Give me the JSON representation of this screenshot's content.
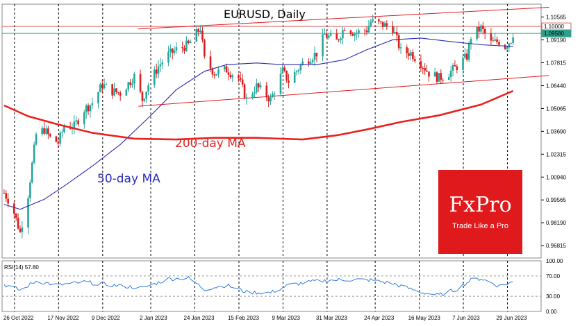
{
  "chart_data": {
    "type": "candlestick",
    "title": "EURUSD, Daily",
    "symbol": "EURUSD",
    "timeframe": "Daily",
    "ylim": [
      0.9607,
      1.1134
    ],
    "price_ticks": [
      "1.10565",
      "1.09190",
      "1.07815",
      "1.06440",
      "1.05065",
      "1.03690",
      "1.02315",
      "1.00940",
      "0.99565",
      "0.98190",
      "0.96815"
    ],
    "date_ticks": [
      "26 Oct 2022",
      "17 Nov 2022",
      "9 Dec 2022",
      "2 Jan 2023",
      "24 Jan 2023",
      "15 Feb 2023",
      "9 Mar 2023",
      "31 Mar 2023",
      "24 Apr 2023",
      "16 May 2023",
      "7 Jun 2023",
      "29 Jun 2023"
    ],
    "price_levels": [
      {
        "label": "1.10000",
        "value": 1.1,
        "color": "#e06060"
      },
      {
        "label": "1.09580",
        "value": 1.0958,
        "color": "#2ea08a"
      }
    ],
    "close_path": [
      [
        "2022-10-26",
        0.9998
      ],
      [
        "2022-10-28",
        0.996
      ],
      [
        "2022-10-31",
        0.988
      ],
      [
        "2022-11-03",
        0.976
      ],
      [
        "2022-11-07",
        0.999
      ],
      [
        "2022-11-11",
        1.035
      ],
      [
        "2022-11-15",
        1.038
      ],
      [
        "2022-11-18",
        1.033
      ],
      [
        "2022-11-22",
        1.03
      ],
      [
        "2022-11-25",
        1.04
      ],
      [
        "2022-11-30",
        1.04
      ],
      [
        "2022-12-05",
        1.05
      ],
      [
        "2022-12-09",
        1.054
      ],
      [
        "2022-12-14",
        1.065
      ],
      [
        "2022-12-19",
        1.061
      ],
      [
        "2022-12-23",
        1.06
      ],
      [
        "2022-12-30",
        1.07
      ],
      [
        "2023-01-03",
        1.056
      ],
      [
        "2023-01-06",
        1.065
      ],
      [
        "2023-01-11",
        1.076
      ],
      [
        "2023-01-16",
        1.083
      ],
      [
        "2023-01-20",
        1.086
      ],
      [
        "2023-01-26",
        1.089
      ],
      [
        "2023-02-01",
        1.099
      ],
      [
        "2023-02-03",
        1.08
      ],
      [
        "2023-02-08",
        1.072
      ],
      [
        "2023-02-14",
        1.074
      ],
      [
        "2023-02-20",
        1.069
      ],
      [
        "2023-02-24",
        1.056
      ],
      [
        "2023-03-01",
        1.064
      ],
      [
        "2023-03-08",
        1.056
      ],
      [
        "2023-03-14",
        1.073
      ],
      [
        "2023-03-17",
        1.067
      ],
      [
        "2023-03-24",
        1.078
      ],
      [
        "2023-03-31",
        1.084
      ],
      [
        "2023-04-04",
        1.095
      ],
      [
        "2023-04-10",
        1.091
      ],
      [
        "2023-04-14",
        1.1
      ],
      [
        "2023-04-19",
        1.096
      ],
      [
        "2023-04-25",
        1.098
      ],
      [
        "2023-04-27",
        1.103
      ],
      [
        "2023-05-03",
        1.101
      ],
      [
        "2023-05-08",
        1.099
      ],
      [
        "2023-05-12",
        1.085
      ],
      [
        "2023-05-17",
        1.084
      ],
      [
        "2023-05-22",
        1.078
      ],
      [
        "2023-05-26",
        1.072
      ],
      [
        "2023-05-31",
        1.069
      ],
      [
        "2023-06-05",
        1.072
      ],
      [
        "2023-06-09",
        1.076
      ],
      [
        "2023-06-14",
        1.082
      ],
      [
        "2023-06-16",
        1.094
      ],
      [
        "2023-06-21",
        1.099
      ],
      [
        "2023-06-26",
        1.09
      ],
      [
        "2023-06-30",
        1.091
      ],
      [
        "2023-07-03",
        1.088
      ],
      [
        "2023-07-06",
        1.092
      ],
      [
        "2023-07-07",
        1.0958
      ]
    ],
    "series": [
      {
        "name": "50-day MA",
        "color": "#2b2bb5",
        "values": [
          [
            "2022-10-26",
            0.993
          ],
          [
            "2022-11-03",
            0.99
          ],
          [
            "2022-11-15",
            0.996
          ],
          [
            "2022-11-25",
            1.004
          ],
          [
            "2022-12-09",
            1.016
          ],
          [
            "2022-12-23",
            1.029
          ],
          [
            "2023-01-06",
            1.045
          ],
          [
            "2023-01-20",
            1.062
          ],
          [
            "2023-02-03",
            1.073
          ],
          [
            "2023-02-14",
            1.077
          ],
          [
            "2023-03-01",
            1.078
          ],
          [
            "2023-03-14",
            1.077
          ],
          [
            "2023-03-31",
            1.077
          ],
          [
            "2023-04-14",
            1.08
          ],
          [
            "2023-04-25",
            1.086
          ],
          [
            "2023-05-08",
            1.092
          ],
          [
            "2023-05-22",
            1.093
          ],
          [
            "2023-06-05",
            1.091
          ],
          [
            "2023-06-21",
            1.089
          ],
          [
            "2023-07-07",
            1.088
          ]
        ]
      },
      {
        "name": "200-day MA",
        "color": "#e8211d",
        "values": [
          [
            "2022-10-26",
            1.0525
          ],
          [
            "2022-11-07",
            1.046
          ],
          [
            "2022-11-22",
            1.041
          ],
          [
            "2022-12-09",
            1.036
          ],
          [
            "2022-12-30",
            1.0325
          ],
          [
            "2023-01-20",
            1.032
          ],
          [
            "2023-02-08",
            1.033
          ],
          [
            "2023-03-01",
            1.033
          ],
          [
            "2023-03-24",
            1.032
          ],
          [
            "2023-04-10",
            1.0345
          ],
          [
            "2023-04-25",
            1.038
          ],
          [
            "2023-05-12",
            1.0425
          ],
          [
            "2023-05-31",
            1.0465
          ],
          [
            "2023-06-21",
            1.053
          ],
          [
            "2023-07-07",
            1.0612
          ]
        ]
      }
    ],
    "channel": {
      "color": "#e0191c",
      "upper": [
        [
          "2023-01-01",
          1.0985
        ],
        [
          "2023-07-25",
          1.1115
        ]
      ],
      "lower": [
        [
          "2023-01-01",
          1.052
        ],
        [
          "2023-07-25",
          1.0705
        ]
      ]
    },
    "annotations": [
      {
        "text": "200-day MA",
        "color": "#e8211d"
      },
      {
        "text": "50-day MA",
        "color": "#2b2bb5"
      }
    ],
    "rsi": {
      "label": "RSI(14) 57.80",
      "value": 57.8,
      "ylim": [
        0,
        100
      ],
      "ticks": [
        "100.00",
        "70.00",
        "30.00",
        "0.00"
      ],
      "levels": [
        70,
        30
      ],
      "color": "#1e6fd8",
      "values": [
        [
          "2022-10-26",
          53
        ],
        [
          "2022-11-03",
          42
        ],
        [
          "2022-11-11",
          60
        ],
        [
          "2022-11-22",
          52
        ],
        [
          "2022-12-05",
          58
        ],
        [
          "2022-12-19",
          52
        ],
        [
          "2023-01-03",
          46
        ],
        [
          "2023-01-16",
          64
        ],
        [
          "2023-01-26",
          66
        ],
        [
          "2023-02-03",
          44
        ],
        [
          "2023-02-14",
          52
        ],
        [
          "2023-02-24",
          38
        ],
        [
          "2023-03-08",
          37
        ],
        [
          "2023-03-17",
          52
        ],
        [
          "2023-03-31",
          60
        ],
        [
          "2023-04-14",
          63
        ],
        [
          "2023-04-27",
          62
        ],
        [
          "2023-05-08",
          55
        ],
        [
          "2023-05-22",
          38
        ],
        [
          "2023-05-31",
          32
        ],
        [
          "2023-06-09",
          44
        ],
        [
          "2023-06-16",
          62
        ],
        [
          "2023-06-21",
          65
        ],
        [
          "2023-06-30",
          50
        ],
        [
          "2023-07-07",
          58
        ]
      ]
    }
  },
  "brand": {
    "name": "FxPro",
    "tagline": "Trade Like a Pro",
    "color": "#e0191c"
  }
}
